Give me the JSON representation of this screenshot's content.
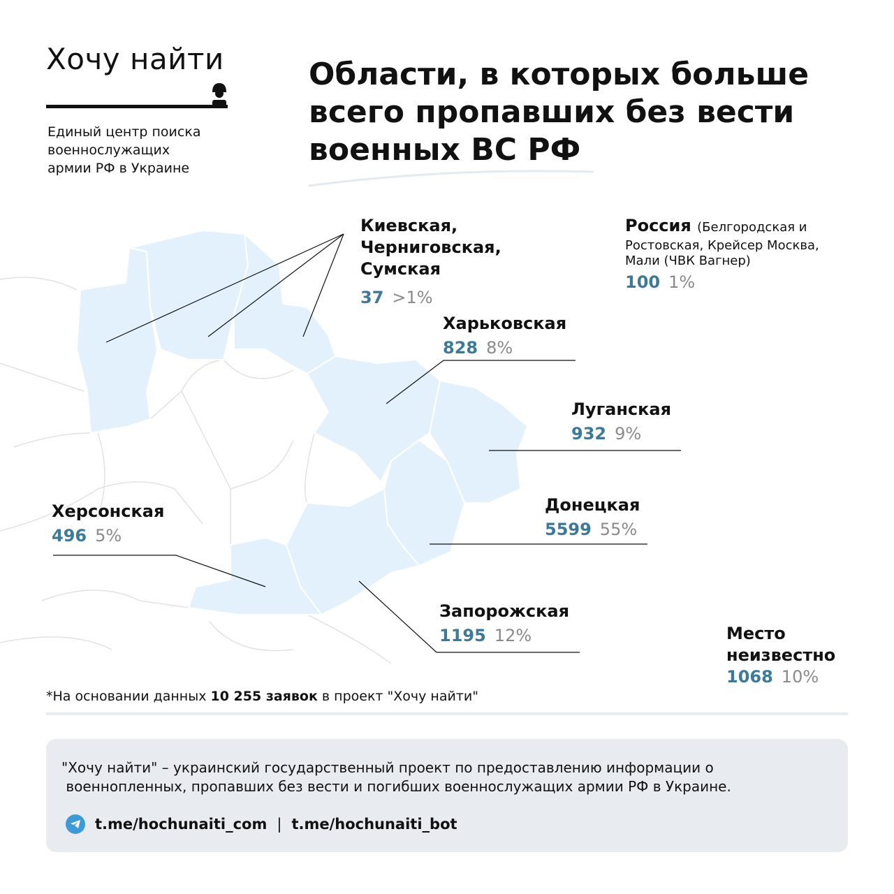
{
  "header": {
    "logo": "Хочу найти",
    "subtitle_lines": [
      "Единый центр поиска",
      "военнослужащих",
      "армии РФ в Украине"
    ],
    "title_lines": [
      "Области, в которых больше",
      "всего пропавших без вести",
      "военных ВС РФ"
    ]
  },
  "regions": {
    "north": {
      "name_lines": [
        "Киевская,",
        "Черниговская,",
        "Сумская"
      ],
      "count": "37",
      "percent": ">1%"
    },
    "russia": {
      "name": "Россия",
      "note_lines": [
        "(Белгородская и",
        "Ростовская, Крейсер Москва,",
        "Мали (ЧВК Вагнер)"
      ],
      "count": "100",
      "percent": "1%"
    },
    "kharkiv": {
      "name": "Харьковская",
      "count": "828",
      "percent": "8%"
    },
    "luhansk": {
      "name": "Луганская",
      "count": "932",
      "percent": "9%"
    },
    "donetsk": {
      "name": "Донецкая",
      "count": "5599",
      "percent": "55%"
    },
    "kherson": {
      "name": "Херсонская",
      "count": "496",
      "percent": "5%"
    },
    "zaporizhzhia": {
      "name": "Запорожская",
      "count": "1195",
      "percent": "12%"
    },
    "unknown": {
      "name_lines": [
        "Место",
        "неизвестно"
      ],
      "count": "1068",
      "percent": "10%"
    }
  },
  "note": {
    "prefix": "*На основании данных ",
    "bold": "10 255 заявок",
    "suffix": " в проект \"Хочу найти\""
  },
  "footer": {
    "text_lines": [
      "\"Хочу найти\" – украинский государственный проект по предоставлению информации о",
      " военнопленных, пропавших без вести и погибших военнослужащих армии РФ в Украине."
    ],
    "link1": "t.me/hochunaiti_com",
    "divider": "|",
    "link2": "t.me/hochunaiti_bot",
    "icon": "telegram-icon"
  },
  "colors": {
    "region_fill": "#e2f1fb",
    "number": "#3c7a9b",
    "percent": "#8a8a8a",
    "footer_bg": "#e8ebf0"
  }
}
